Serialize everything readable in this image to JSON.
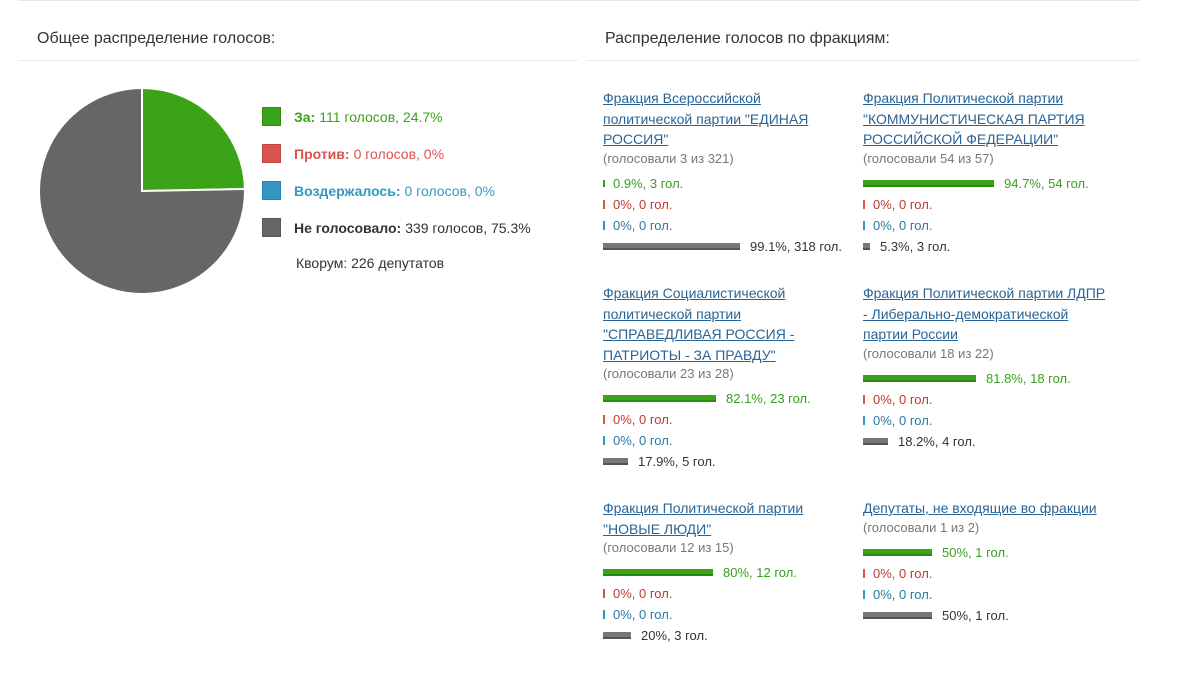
{
  "overall": {
    "title": "Общее распределение голосов:",
    "legend": [
      {
        "key": "za",
        "label": "За:",
        "text": "111 голосов, 24.7%",
        "color": "#3aa318",
        "percent": 24.7
      },
      {
        "key": "pr",
        "label": "Против:",
        "text": "0 голосов, 0%",
        "color": "#d9534f",
        "percent": 0
      },
      {
        "key": "vo",
        "label": "Воздержалось:",
        "text": "0 голосов, 0%",
        "color": "#3298c0",
        "percent": 0
      },
      {
        "key": "ng",
        "label": "Не голосовало:",
        "text": "339 голосов, 75.3%",
        "color": "#666666",
        "percent": 75.3
      }
    ],
    "quorum": "Кворум: 226 депутатов"
  },
  "factions": {
    "title": "Распределение голосов по фракциям:",
    "items": [
      {
        "name": "Фракция Всероссийской политической партии \"ЕДИНАЯ РОССИЯ\"",
        "voted": "(голосовали 3 из 321)",
        "rows": [
          {
            "k": "za",
            "text": "0.9%, 3 гол.",
            "p": 0.9
          },
          {
            "k": "pr",
            "text": "0%, 0 гол.",
            "p": 0
          },
          {
            "k": "vo",
            "text": "0%, 0 гол.",
            "p": 0
          },
          {
            "k": "ng",
            "text": "99.1%, 318 гол.",
            "p": 99.1
          }
        ]
      },
      {
        "name": "Фракция Политической партии \"КОММУНИСТИЧЕСКАЯ ПАРТИЯ РОССИЙСКОЙ ФЕДЕРАЦИИ\"",
        "voted": "(голосовали 54 из 57)",
        "rows": [
          {
            "k": "za",
            "text": "94.7%, 54 гол.",
            "p": 94.7
          },
          {
            "k": "pr",
            "text": "0%, 0 гол.",
            "p": 0
          },
          {
            "k": "vo",
            "text": "0%, 0 гол.",
            "p": 0
          },
          {
            "k": "ng",
            "text": "5.3%, 3 гол.",
            "p": 5.3
          }
        ]
      },
      {
        "name": "Фракция Социалистической политической партии \"СПРАВЕДЛИВАЯ РОССИЯ - ПАТРИОТЫ - ЗА ПРАВДУ\"",
        "voted": "(голосовали 23 из 28)",
        "rows": [
          {
            "k": "za",
            "text": "82.1%, 23 гол.",
            "p": 82.1
          },
          {
            "k": "pr",
            "text": "0%, 0 гол.",
            "p": 0
          },
          {
            "k": "vo",
            "text": "0%, 0 гол.",
            "p": 0
          },
          {
            "k": "ng",
            "text": "17.9%, 5 гол.",
            "p": 17.9
          }
        ]
      },
      {
        "name": "Фракция Политической партии ЛДПР - Либерально-демократической партии России",
        "voted": "(голосовали 18 из 22)",
        "rows": [
          {
            "k": "za",
            "text": "81.8%, 18 гол.",
            "p": 81.8
          },
          {
            "k": "pr",
            "text": "0%, 0 гол.",
            "p": 0
          },
          {
            "k": "vo",
            "text": "0%, 0 гол.",
            "p": 0
          },
          {
            "k": "ng",
            "text": "18.2%, 4 гол.",
            "p": 18.2
          }
        ]
      },
      {
        "name": "Фракция Политической партии \"НОВЫЕ ЛЮДИ\"",
        "voted": "(голосовали 12 из 15)",
        "rows": [
          {
            "k": "za",
            "text": "80%, 12 гол.",
            "p": 80
          },
          {
            "k": "pr",
            "text": "0%, 0 гол.",
            "p": 0
          },
          {
            "k": "vo",
            "text": "0%, 0 гол.",
            "p": 0
          },
          {
            "k": "ng",
            "text": "20%, 3 гол.",
            "p": 20
          }
        ]
      },
      {
        "name": "Депутаты, не входящие во фракции",
        "voted": "(голосовали 1 из 2)",
        "rows": [
          {
            "k": "za",
            "text": "50%, 1 гол.",
            "p": 50
          },
          {
            "k": "pr",
            "text": "0%, 0 гол.",
            "p": 0
          },
          {
            "k": "vo",
            "text": "0%, 0 гол.",
            "p": 0
          },
          {
            "k": "ng",
            "text": "50%, 1 гол.",
            "p": 50
          }
        ]
      }
    ]
  }
}
